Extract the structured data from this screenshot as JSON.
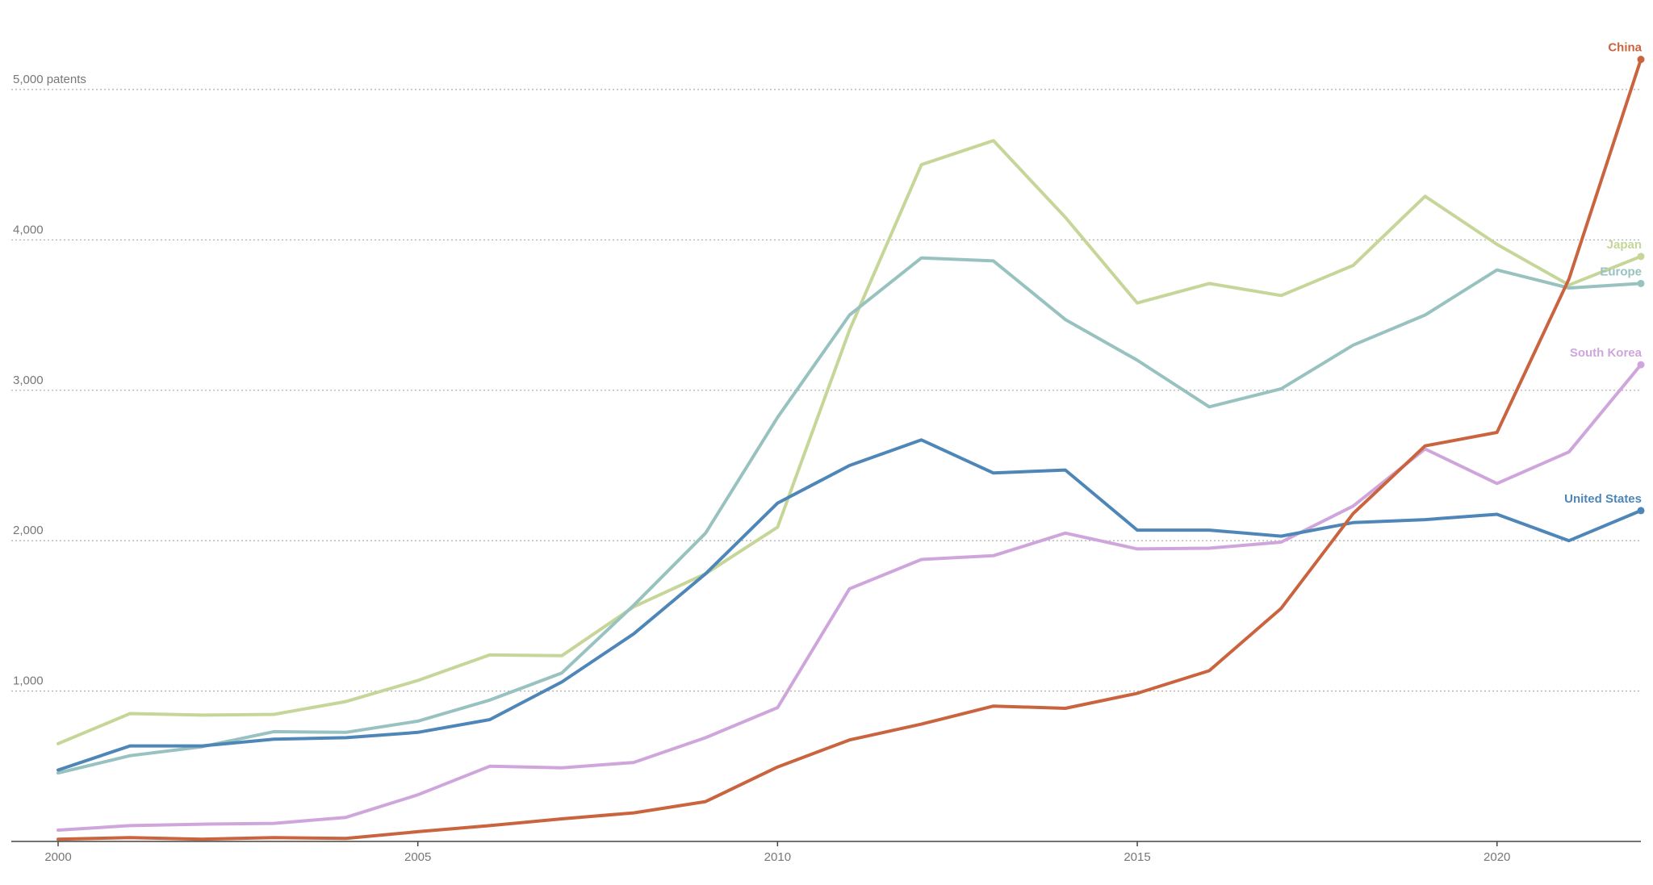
{
  "chart_data": {
    "type": "line",
    "title": "",
    "xlabel": "",
    "ylabel": "",
    "x": [
      2000,
      2001,
      2002,
      2003,
      2004,
      2005,
      2006,
      2007,
      2008,
      2009,
      2010,
      2011,
      2012,
      2013,
      2014,
      2015,
      2016,
      2017,
      2018,
      2019,
      2020,
      2021,
      2022
    ],
    "xlim": [
      2000,
      2022
    ],
    "ylim": [
      0,
      5300
    ],
    "grid": true,
    "legend": "end-of-line labels",
    "x_ticks": [
      2000,
      2005,
      2010,
      2015,
      2020
    ],
    "x_tick_labels": [
      "2000",
      "2005",
      "2010",
      "2015",
      "2020"
    ],
    "y_ticks": [
      1000,
      2000,
      3000,
      4000,
      5000
    ],
    "y_tick_labels": [
      "1,000",
      "2,000",
      "3,000",
      "4,000",
      "5,000 patents"
    ],
    "series": [
      {
        "name": "Japan",
        "color": "#c5d698",
        "values": [
          650,
          850,
          840,
          845,
          930,
          1070,
          1240,
          1235,
          1560,
          1780,
          2090,
          3400,
          4500,
          4660,
          4150,
          3580,
          3710,
          3630,
          3830,
          4290,
          3970,
          3700,
          3890
        ]
      },
      {
        "name": "Europe",
        "color": "#98c2c0",
        "values": [
          455,
          570,
          630,
          730,
          725,
          800,
          940,
          1120,
          1570,
          2050,
          2820,
          3500,
          3880,
          3860,
          3470,
          3200,
          2890,
          3010,
          3300,
          3500,
          3800,
          3680,
          3710
        ]
      },
      {
        "name": "South Korea",
        "color": "#cfa6dc",
        "values": [
          75,
          105,
          115,
          120,
          160,
          310,
          500,
          490,
          525,
          690,
          890,
          1680,
          1875,
          1900,
          2050,
          1945,
          1950,
          1990,
          2230,
          2610,
          2380,
          2590,
          3170
        ]
      },
      {
        "name": "United States",
        "color": "#4e86b8",
        "values": [
          475,
          635,
          635,
          680,
          690,
          725,
          810,
          1060,
          1380,
          1780,
          2250,
          2500,
          2670,
          2450,
          2470,
          2070,
          2070,
          2030,
          2120,
          2140,
          2175,
          2000,
          2200
        ]
      },
      {
        "name": "China",
        "color": "#c9643f",
        "values": [
          15,
          25,
          15,
          25,
          20,
          65,
          105,
          150,
          190,
          265,
          495,
          675,
          780,
          900,
          885,
          985,
          1135,
          1550,
          2180,
          2630,
          2720,
          3740,
          5200
        ]
      }
    ]
  }
}
